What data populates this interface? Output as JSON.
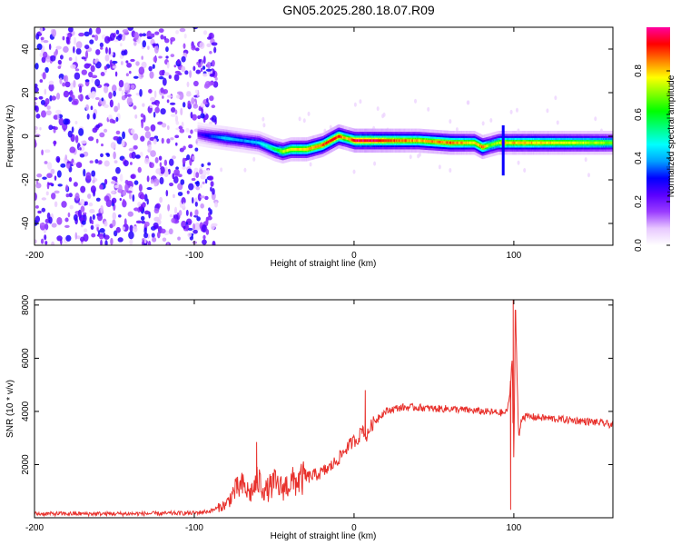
{
  "title": "GN05.2025.280.18.07.R09",
  "chart_data": [
    {
      "type": "heatmap",
      "title": "",
      "xlabel": "Height of straight line (km)",
      "ylabel": "Frequency (Hz)",
      "xlim": [
        -200,
        162
      ],
      "ylim": [
        -50,
        50
      ],
      "xticks": [
        -200,
        -100,
        0,
        100
      ],
      "xtick_labels": [
        "-200",
        "-100",
        "0",
        "100"
      ],
      "yticks": [
        -40,
        -20,
        0,
        20,
        40
      ],
      "ytick_labels": [
        "-40",
        "-20",
        "0",
        "20",
        "40"
      ],
      "noise_region_x": [
        -200,
        -90
      ],
      "signal_track": {
        "x": [
          -98,
          -90,
          -80,
          -70,
          -60,
          -50,
          -45,
          -40,
          -30,
          -20,
          -15,
          -10,
          -5,
          0,
          10,
          20,
          40,
          60,
          75,
          80,
          85,
          90,
          93,
          96,
          100,
          110,
          130,
          150,
          162
        ],
        "frequency": [
          1,
          0,
          -1,
          -2,
          -3,
          -6,
          -7,
          -6,
          -6,
          -4,
          -2,
          0,
          -1,
          -2,
          -2,
          -2,
          -2,
          -3,
          -3,
          -5,
          -4,
          -3,
          -3,
          -3,
          -3,
          -3,
          -3,
          -3,
          -3
        ],
        "amplitude": [
          0.25,
          0.35,
          0.45,
          0.4,
          0.45,
          0.6,
          0.75,
          0.8,
          0.85,
          0.9,
          0.95,
          0.95,
          0.8,
          1.0,
          1.0,
          0.95,
          0.85,
          0.9,
          0.8,
          0.9,
          0.7,
          0.75,
          0.95,
          0.8,
          0.85,
          0.85,
          0.8,
          0.75,
          0.7
        ]
      },
      "colorbar": {
        "label": "Normalized spectral amplitude",
        "range": [
          0,
          1
        ],
        "ticks": [
          0.0,
          0.2,
          0.4,
          0.6,
          0.8
        ],
        "tick_labels": [
          "0.0",
          "0.2",
          "0.4",
          "0.6",
          "0.8"
        ],
        "colors": [
          "#ffffff",
          "#e8c8ff",
          "#9a3cff",
          "#5a00ff",
          "#0000ff",
          "#00a0ff",
          "#00ffff",
          "#00ff80",
          "#00ff00",
          "#80ff00",
          "#ffff00",
          "#ff8000",
          "#ff0000",
          "#ff00a0"
        ]
      }
    },
    {
      "type": "line",
      "title": "",
      "xlabel": "Height of straight line (km)",
      "ylabel": "SNR (10 * v/v)",
      "xlim": [
        -200,
        162
      ],
      "ylim": [
        0,
        8200
      ],
      "xticks": [
        -200,
        -100,
        0,
        100
      ],
      "xtick_labels": [
        "-200",
        "-100",
        "0",
        "100"
      ],
      "yticks": [
        2000,
        4000,
        6000,
        8000
      ],
      "ytick_labels": [
        "2000",
        "4000",
        "6000",
        "8000"
      ],
      "series": [
        {
          "name": "SNR",
          "color": "#e8312c",
          "x": [
            -200,
            -180,
            -160,
            -140,
            -120,
            -100,
            -90,
            -80,
            -75,
            -70,
            -65,
            -60,
            -55,
            -50,
            -45,
            -40,
            -35,
            -30,
            -25,
            -20,
            -15,
            -10,
            -5,
            0,
            3,
            5,
            8,
            10,
            15,
            20,
            25,
            30,
            40,
            50,
            60,
            70,
            80,
            90,
            95,
            97,
            99,
            100,
            101,
            103,
            105,
            110,
            120,
            130,
            140,
            150,
            162
          ],
          "y": [
            150,
            150,
            150,
            150,
            160,
            180,
            250,
            500,
            1000,
            1200,
            900,
            1400,
            1000,
            1300,
            1100,
            1300,
            1400,
            1500,
            1600,
            1700,
            1900,
            2200,
            2600,
            2900,
            3000,
            3400,
            3000,
            3400,
            3800,
            4000,
            4100,
            4150,
            4150,
            4100,
            4100,
            4050,
            4000,
            3950,
            3950,
            4300,
            6000,
            2000,
            7800,
            3000,
            3800,
            3800,
            3750,
            3700,
            3650,
            3600,
            3500
          ]
        }
      ],
      "spikes": [
        {
          "x": -61,
          "y": 2850
        },
        {
          "x": 7,
          "y": 4800
        },
        {
          "x": 98,
          "y": 300
        },
        {
          "x": 99.6,
          "y": 8200
        },
        {
          "x": 101,
          "y": 7800
        }
      ]
    }
  ]
}
